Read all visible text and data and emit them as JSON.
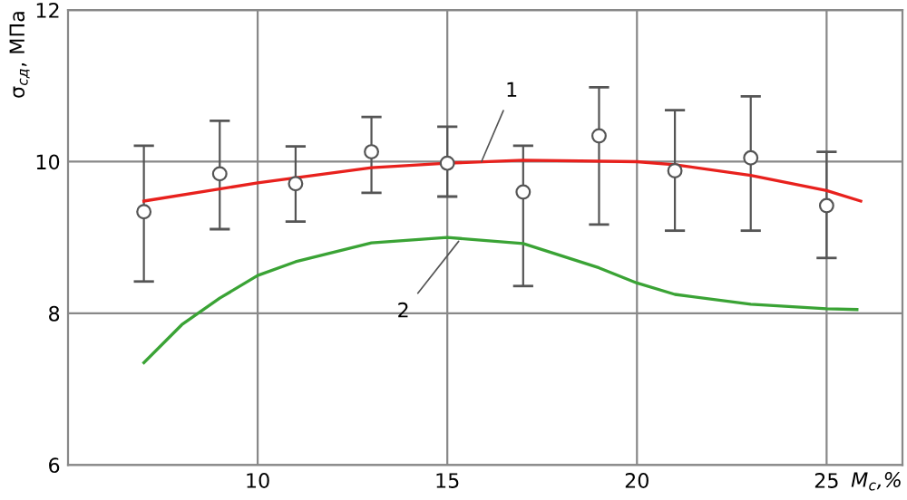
{
  "chart_data": {
    "type": "line",
    "xlabel": "M$_{c}$,%",
    "ylabel": "σ$_{сд}$, МПа",
    "xlim": [
      5,
      27
    ],
    "ylim": [
      6,
      12
    ],
    "xticks": [
      10,
      15,
      20,
      25
    ],
    "yticks": [
      6,
      8,
      10,
      12
    ],
    "grid": true,
    "series": [
      {
        "type": "scatter",
        "marker": "circle",
        "color": "#555555",
        "x": [
          7,
          9,
          11,
          13,
          15,
          17,
          19,
          21,
          23,
          25
        ],
        "values": [
          9.34,
          9.84,
          9.71,
          10.13,
          9.98,
          9.6,
          10.34,
          9.88,
          10.05,
          9.42
        ],
        "errors": [
          [
            8.42,
            10.21
          ],
          [
            9.11,
            10.54
          ],
          [
            9.21,
            10.2
          ],
          [
            9.59,
            10.59
          ],
          [
            9.54,
            10.46
          ],
          [
            8.36,
            10.21
          ],
          [
            9.17,
            10.98
          ],
          [
            9.09,
            10.68
          ],
          [
            9.09,
            10.86
          ],
          [
            8.73,
            10.13
          ]
        ]
      },
      {
        "marker": "none",
        "color": "#e8211d",
        "x": [
          7,
          10,
          13,
          15,
          17,
          20,
          21,
          23,
          25,
          25.9
        ],
        "values": [
          9.48,
          9.72,
          9.92,
          9.98,
          10.02,
          10.0,
          9.96,
          9.82,
          9.62,
          9.48
        ]
      },
      {
        "marker": "none",
        "color": "#3aa335",
        "x": [
          7,
          8,
          9,
          10,
          11,
          13,
          15,
          17,
          19,
          20,
          21,
          23,
          25,
          25.8
        ],
        "values": [
          7.35,
          7.85,
          8.2,
          8.5,
          8.68,
          8.93,
          9.0,
          8.92,
          8.6,
          8.4,
          8.25,
          8.12,
          8.06,
          8.05
        ]
      }
    ],
    "annotations": [
      {
        "text": "1",
        "x": 15.9,
        "y": 10.0
      },
      {
        "text": "2",
        "x": 15.3,
        "y": 8.95
      }
    ]
  }
}
